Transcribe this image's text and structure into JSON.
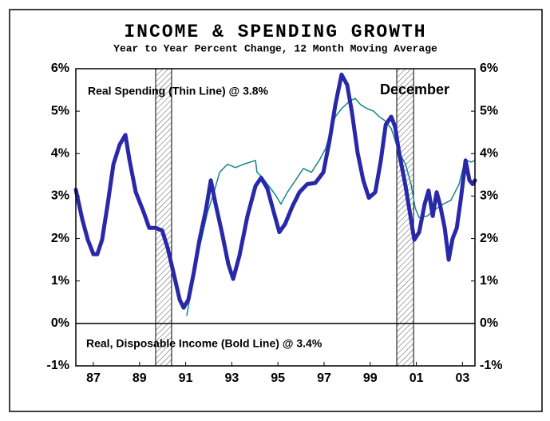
{
  "chart_data": {
    "type": "line",
    "title": "INCOME & SPENDING GROWTH",
    "subtitle": "Year to Year Percent Change, 12 Month Moving Average",
    "annotations": [
      "Real Spending (Thin Line) @ 3.8%",
      "December",
      "Real, Disposable Income (Bold Line) @ 3.4%"
    ],
    "xlim": [
      1986.7,
      2004.0
    ],
    "xticks": [
      {
        "value": 1987.46,
        "label": "87"
      },
      {
        "value": 1989.46,
        "label": "89"
      },
      {
        "value": 1991.46,
        "label": "91"
      },
      {
        "value": 1993.46,
        "label": "93"
      },
      {
        "value": 1995.46,
        "label": "95"
      },
      {
        "value": 1997.46,
        "label": "97"
      },
      {
        "value": 1999.46,
        "label": "99"
      },
      {
        "value": 2001.46,
        "label": "01"
      },
      {
        "value": 2003.46,
        "label": "03"
      }
    ],
    "ylim": [
      -1,
      6
    ],
    "yticks": [
      {
        "value": -1,
        "label": "-1%"
      },
      {
        "value": 0,
        "label": "0%"
      },
      {
        "value": 1,
        "label": "1%"
      },
      {
        "value": 2,
        "label": "2%"
      },
      {
        "value": 3,
        "label": "3%"
      },
      {
        "value": 4,
        "label": "4%"
      },
      {
        "value": 5,
        "label": "5%"
      },
      {
        "value": 6,
        "label": "6%"
      }
    ],
    "y2lim": [
      -1,
      6
    ],
    "y2ticks": [
      {
        "value": -1,
        "label": "-1%"
      },
      {
        "value": 0,
        "label": "0%"
      },
      {
        "value": 1,
        "label": "1%"
      },
      {
        "value": 2,
        "label": "2%"
      },
      {
        "value": 3,
        "label": "3%"
      },
      {
        "value": 4,
        "label": "4%"
      },
      {
        "value": 5,
        "label": "5%"
      },
      {
        "value": 6,
        "label": "6%"
      }
    ],
    "shaded_periods": [
      [
        1990.16,
        1990.85
      ],
      [
        2000.61,
        2001.34
      ]
    ],
    "series": [
      {
        "name": "Real, Disposable Income",
        "color": "#2828a8",
        "width": 5,
        "x": [
          1986.7,
          1986.98,
          1987.22,
          1987.46,
          1987.63,
          1987.84,
          1988.08,
          1988.33,
          1988.6,
          1988.85,
          1989.02,
          1989.3,
          1989.64,
          1989.88,
          1990.16,
          1990.44,
          1990.68,
          1990.92,
          1991.2,
          1991.37,
          1991.58,
          1991.82,
          1992.06,
          1992.34,
          1992.55,
          1992.76,
          1993.03,
          1993.31,
          1993.52,
          1993.79,
          1994.14,
          1994.49,
          1994.73,
          1995.0,
          1995.25,
          1995.52,
          1995.77,
          1996.08,
          1996.39,
          1996.73,
          1997.08,
          1997.43,
          1997.7,
          1997.95,
          1998.22,
          1998.46,
          1998.67,
          1998.91,
          1999.16,
          1999.4,
          1999.68,
          1999.92,
          2000.13,
          2000.37,
          2000.54,
          2000.71,
          2000.99,
          2001.2,
          2001.37,
          2001.58,
          2001.82,
          2001.99,
          2002.17,
          2002.34,
          2002.48,
          2002.69,
          2002.86,
          2003.03,
          2003.21,
          2003.38,
          2003.59,
          2003.76,
          2003.9,
          2004.0
        ],
        "values": [
          3.15,
          2.45,
          1.97,
          1.63,
          1.63,
          1.97,
          2.81,
          3.75,
          4.21,
          4.44,
          3.86,
          3.09,
          2.62,
          2.25,
          2.25,
          2.19,
          1.78,
          1.22,
          0.56,
          0.37,
          0.56,
          1.22,
          1.97,
          2.68,
          3.37,
          2.81,
          2.15,
          1.4,
          1.05,
          1.59,
          2.53,
          3.24,
          3.43,
          3.18,
          2.68,
          2.15,
          2.34,
          2.75,
          3.09,
          3.28,
          3.31,
          3.56,
          4.31,
          5.15,
          5.86,
          5.62,
          4.96,
          4.03,
          3.37,
          2.96,
          3.09,
          3.84,
          4.68,
          4.87,
          4.63,
          4.03,
          3.24,
          2.53,
          1.97,
          2.15,
          2.81,
          3.13,
          2.53,
          3.09,
          2.81,
          2.25,
          1.5,
          2.0,
          2.25,
          2.9,
          3.84,
          3.37,
          3.28,
          3.37
        ]
      },
      {
        "name": "Real Spending",
        "color": "#15868a",
        "width": 1.5,
        "x": [
          1991.51,
          1991.72,
          1992.06,
          1992.41,
          1992.69,
          1992.93,
          1993.27,
          1993.62,
          1993.97,
          1994.49,
          1994.55,
          1994.76,
          1995.0,
          1995.35,
          1995.59,
          1995.87,
          1996.22,
          1996.56,
          1996.91,
          1997.25,
          1997.53,
          1997.77,
          1997.95,
          1998.22,
          1998.57,
          1998.81,
          1999.05,
          1999.33,
          1999.61,
          1999.85,
          2000.09,
          2000.37,
          2000.71,
          2000.99,
          2001.23,
          2001.41,
          2001.58,
          2001.93,
          2002.27,
          2002.62,
          2002.96,
          2003.31,
          2003.48,
          2003.66,
          2003.83,
          2004.0
        ],
        "values": [
          0.19,
          0.84,
          1.78,
          2.62,
          3.09,
          3.56,
          3.75,
          3.67,
          3.75,
          3.84,
          3.56,
          3.46,
          3.28,
          3.03,
          2.81,
          3.09,
          3.37,
          3.65,
          3.56,
          3.84,
          4.12,
          4.59,
          4.87,
          5.06,
          5.24,
          5.3,
          5.15,
          5.06,
          5.0,
          4.87,
          4.78,
          4.59,
          4.03,
          3.75,
          3.28,
          2.72,
          2.49,
          2.53,
          2.68,
          2.81,
          2.9,
          3.28,
          3.65,
          3.84,
          3.8,
          3.84
        ]
      }
    ]
  }
}
